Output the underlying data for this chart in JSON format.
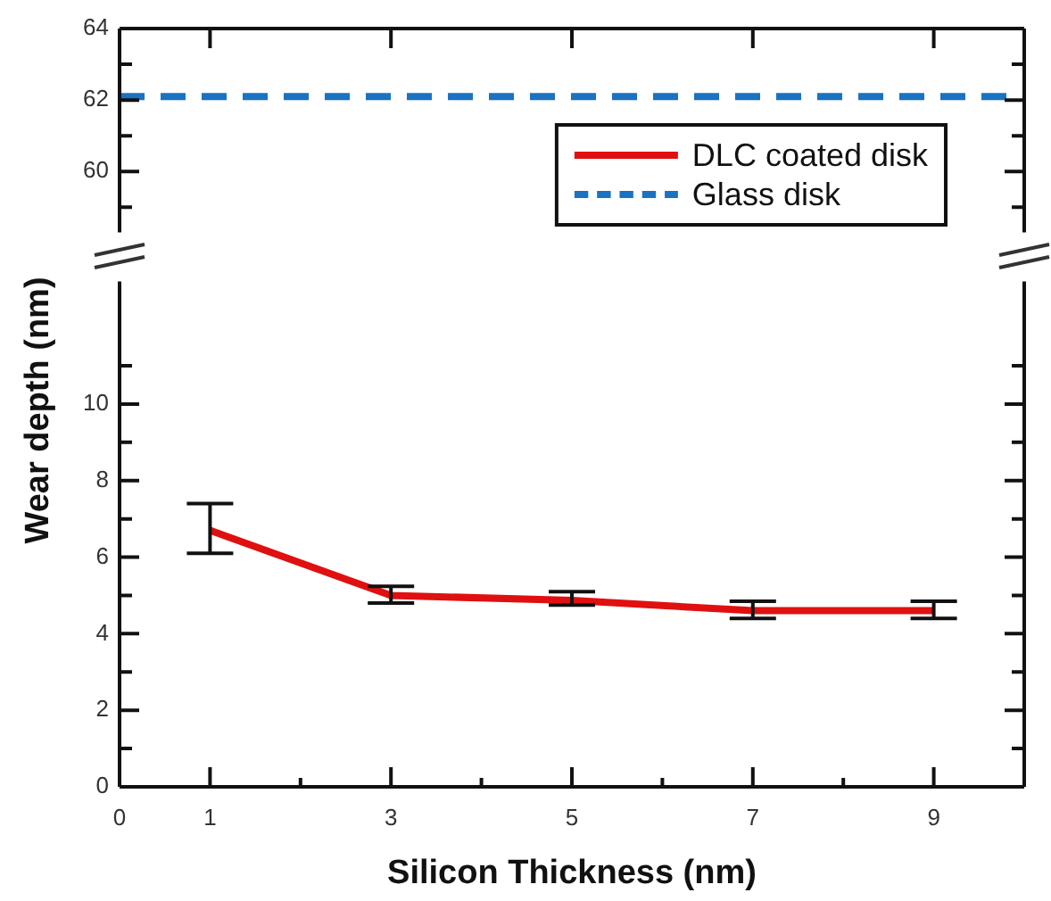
{
  "chart_data": [
    {
      "type": "line",
      "xlim": [
        0,
        10
      ],
      "xticks": [
        {
          "value": 1,
          "label": null
        },
        {
          "value": 3,
          "label": null
        },
        {
          "value": 5,
          "label": null
        },
        {
          "value": 7,
          "label": null
        },
        {
          "value": 9,
          "label": null
        }
      ],
      "ylim": [
        58.3,
        64
      ],
      "yticks": [
        {
          "value": 59,
          "label": null
        },
        60,
        {
          "value": 61,
          "label": null
        },
        62,
        {
          "value": 63,
          "label": null
        },
        64
      ],
      "tick_labels": "y",
      "marker": "none",
      "legend": "right",
      "series": [
        {
          "name": "Glass disk",
          "color": "#1a72c2",
          "x": [
            0,
            10
          ],
          "values": [
            62.1,
            62.1
          ],
          "line_style": "dashed"
        }
      ]
    },
    {
      "type": "line",
      "xlabel": "Silicon Thickness (nm)",
      "ylabel": "Wear depth (nm)",
      "x": [
        1,
        3,
        5,
        7,
        9
      ],
      "xlim": [
        0,
        10
      ],
      "xticks": [
        0,
        1,
        {
          "value": 2,
          "label": null
        },
        3,
        {
          "value": 4,
          "label": null
        },
        5,
        {
          "value": 6,
          "label": null
        },
        7,
        {
          "value": 8,
          "label": null
        },
        9
      ],
      "ylim": [
        0,
        13.2
      ],
      "yticks": [
        0,
        {
          "value": 1,
          "label": null
        },
        2,
        {
          "value": 3,
          "label": null
        },
        4,
        {
          "value": 5,
          "label": null
        },
        6,
        {
          "value": 7,
          "label": null
        },
        8,
        {
          "value": 9,
          "label": null
        },
        10,
        {
          "value": 11,
          "label": null
        }
      ],
      "marker": "none",
      "series": [
        {
          "name": "DLC coated disk",
          "color": "#e01010",
          "values": [
            6.7,
            5.0,
            4.87,
            4.6,
            4.6
          ],
          "errors": [
            [
              6.1,
              7.4
            ],
            [
              4.8,
              5.24
            ],
            [
              4.75,
              5.1
            ],
            [
              4.4,
              4.85
            ],
            [
              4.4,
              4.85
            ]
          ]
        }
      ]
    }
  ]
}
